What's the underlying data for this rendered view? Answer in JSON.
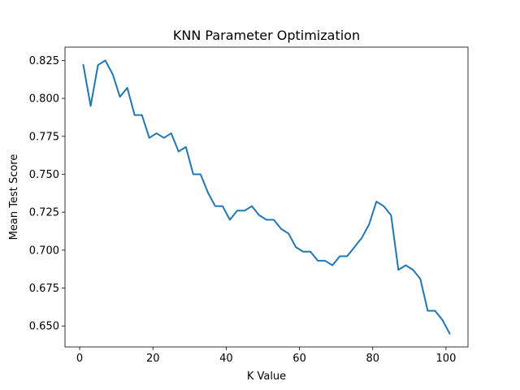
{
  "chart_data": {
    "type": "line",
    "title": "KNN Parameter Optimization",
    "xlabel": "K Value",
    "ylabel": "Mean Test Score",
    "xlim": [
      -4.0,
      106.0
    ],
    "ylim": [
      0.6362,
      0.8338
    ],
    "xticks": [
      0,
      20,
      40,
      60,
      80,
      100
    ],
    "xtick_labels": [
      "0",
      "20",
      "40",
      "60",
      "80",
      "100"
    ],
    "yticks": [
      0.65,
      0.675,
      0.7,
      0.725,
      0.75,
      0.775,
      0.8,
      0.825
    ],
    "ytick_labels": [
      "0.650",
      "0.675",
      "0.700",
      "0.725",
      "0.750",
      "0.775",
      "0.800",
      "0.825"
    ],
    "grid": false,
    "series": [
      {
        "color": "#1f77b4",
        "x": [
          1,
          3,
          5,
          7,
          9,
          11,
          13,
          15,
          17,
          19,
          21,
          23,
          25,
          27,
          29,
          31,
          33,
          35,
          37,
          39,
          41,
          43,
          45,
          47,
          49,
          51,
          53,
          55,
          57,
          59,
          61,
          63,
          65,
          67,
          69,
          71,
          73,
          75,
          77,
          79,
          81,
          83,
          85,
          87,
          89,
          91,
          93,
          95,
          97,
          99,
          101
        ],
        "y": [
          0.822,
          0.795,
          0.822,
          0.825,
          0.816,
          0.801,
          0.807,
          0.789,
          0.789,
          0.774,
          0.777,
          0.774,
          0.777,
          0.765,
          0.768,
          0.75,
          0.75,
          0.738,
          0.729,
          0.729,
          0.72,
          0.726,
          0.726,
          0.729,
          0.723,
          0.72,
          0.72,
          0.714,
          0.711,
          0.702,
          0.699,
          0.699,
          0.693,
          0.693,
          0.69,
          0.696,
          0.696,
          0.702,
          0.708,
          0.717,
          0.732,
          0.729,
          0.723,
          0.687,
          0.69,
          0.687,
          0.681,
          0.66,
          0.66,
          0.654,
          0.645
        ]
      }
    ]
  }
}
